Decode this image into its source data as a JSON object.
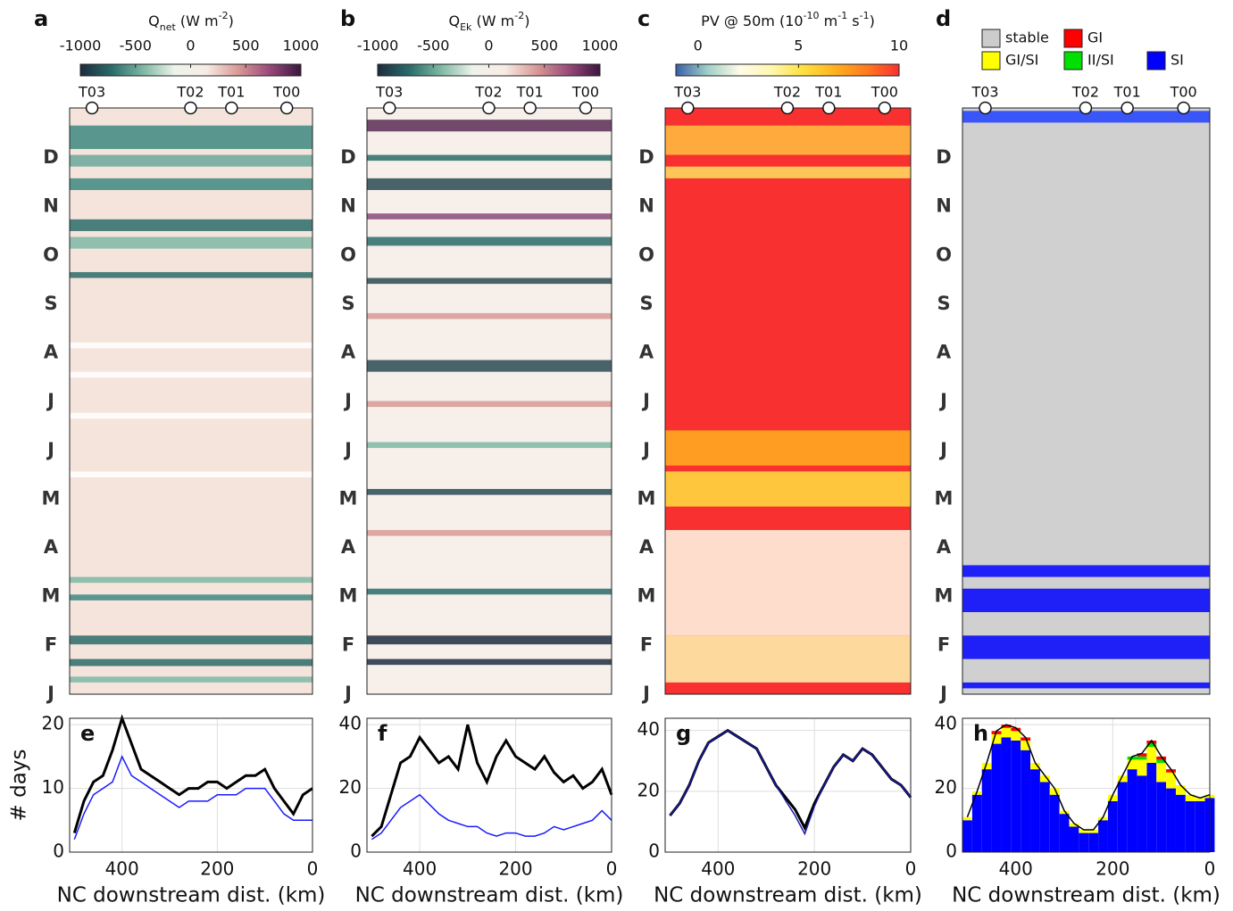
{
  "chart_data": [
    {
      "type": "heatmap",
      "panel_label": "a",
      "colorbar_title": [
        {
          "t": "Q"
        },
        {
          "sub": "net"
        },
        {
          "t": " (W m"
        },
        {
          "sup": "-2"
        },
        {
          "t": ")"
        }
      ],
      "colorbar_lim": [
        -1000,
        1000
      ],
      "colorbar_ticks": [
        -1000,
        -500,
        0,
        500,
        1000
      ],
      "colormap": [
        "#1d2b3f",
        "#2a6c6a",
        "#7fb8a4",
        "#eef3ec",
        "#f7ece4",
        "#d89a96",
        "#9a4a7a",
        "#3a1640"
      ],
      "stations": [
        "T03",
        "T02",
        "T01",
        "T00"
      ],
      "station_x": [
        463,
        256,
        170,
        54
      ],
      "xlim": [
        510,
        0
      ],
      "months": [
        "J",
        "F",
        "M",
        "A",
        "M",
        "J",
        "J",
        "A",
        "S",
        "O",
        "N",
        "D"
      ]
    },
    {
      "type": "heatmap",
      "panel_label": "b",
      "colorbar_title": [
        {
          "t": "Q"
        },
        {
          "sub": "Ek"
        },
        {
          "t": " (W m"
        },
        {
          "sup": "-2"
        },
        {
          "t": ")"
        }
      ],
      "colorbar_lim": [
        -1000,
        1000
      ],
      "colorbar_ticks": [
        -1000,
        -500,
        0,
        500,
        1000
      ],
      "colormap": [
        "#1d2b3f",
        "#2a6c6a",
        "#7fb8a4",
        "#eef3ec",
        "#f7ece4",
        "#d89a96",
        "#9a4a7a",
        "#3a1640"
      ],
      "stations": [
        "T03",
        "T02",
        "T01",
        "T00"
      ],
      "station_x": [
        463,
        256,
        170,
        54
      ],
      "xlim": [
        510,
        0
      ],
      "months": [
        "J",
        "F",
        "M",
        "A",
        "M",
        "J",
        "J",
        "A",
        "S",
        "O",
        "N",
        "D"
      ]
    },
    {
      "type": "heatmap",
      "panel_label": "c",
      "colorbar_title": [
        {
          "t": "PV @ 50m (10"
        },
        {
          "sup": "-10"
        },
        {
          "t": " m"
        },
        {
          "sup": "-1"
        },
        {
          "t": " s"
        },
        {
          "sup": "-1"
        },
        {
          "t": ")"
        }
      ],
      "colorbar_lim": [
        -1.1,
        10
      ],
      "colorbar_ticks": [
        0,
        5,
        10
      ],
      "colormap": [
        "#3a5fa8",
        "#9fd0c8",
        "#fffbe8",
        "#fff7b0",
        "#ffe040",
        "#ffb020",
        "#ff7a20",
        "#f83030"
      ],
      "stations": [
        "T03",
        "T02",
        "T01",
        "T00"
      ],
      "station_x": [
        463,
        256,
        170,
        54
      ],
      "xlim": [
        510,
        0
      ],
      "months": [
        "J",
        "F",
        "M",
        "A",
        "M",
        "J",
        "J",
        "A",
        "S",
        "O",
        "N",
        "D"
      ]
    },
    {
      "type": "heatmap",
      "panel_label": "d",
      "legend": [
        {
          "name": "stable",
          "color": "#cccccc"
        },
        {
          "name": "GI",
          "color": "#ff0000"
        },
        {
          "name": "GI/SI",
          "color": "#ffff00"
        },
        {
          "name": "II/SI",
          "color": "#00e000"
        },
        {
          "name": "SI",
          "color": "#0000ff"
        }
      ],
      "stations": [
        "T03",
        "T02",
        "T01",
        "T00"
      ],
      "station_x": [
        463,
        256,
        170,
        54
      ],
      "xlim": [
        510,
        0
      ],
      "months": [
        "J",
        "F",
        "M",
        "A",
        "M",
        "J",
        "J",
        "A",
        "S",
        "O",
        "N",
        "D"
      ]
    },
    {
      "type": "line",
      "panel_label": "e",
      "ylabel": "# days",
      "xlabel": "NC downstream dist. (km)",
      "xlim": [
        510,
        0
      ],
      "xticks": [
        400,
        200,
        0
      ],
      "ylim": [
        0,
        21
      ],
      "yticks": [
        0,
        10,
        20
      ],
      "grid": true,
      "x": [
        500,
        480,
        460,
        440,
        420,
        400,
        380,
        360,
        340,
        320,
        300,
        280,
        260,
        240,
        220,
        200,
        180,
        160,
        140,
        120,
        100,
        80,
        60,
        40,
        20,
        0
      ],
      "series": [
        {
          "color": "#000000",
          "values": [
            3,
            8,
            11,
            12,
            16,
            21,
            17,
            13,
            12,
            11,
            10,
            9,
            10,
            10,
            11,
            11,
            10,
            11,
            12,
            12,
            13,
            10,
            8,
            6,
            9,
            10
          ]
        },
        {
          "color": "#1a1aff",
          "values": [
            2,
            6,
            9,
            10,
            11,
            15,
            12,
            11,
            10,
            9,
            8,
            7,
            8,
            8,
            8,
            9,
            9,
            9,
            10,
            10,
            10,
            8,
            6,
            5,
            5,
            5
          ]
        }
      ]
    },
    {
      "type": "line",
      "panel_label": "f",
      "xlabel": "NC downstream dist. (km)",
      "xlim": [
        510,
        0
      ],
      "xticks": [
        400,
        200,
        0
      ],
      "ylim": [
        0,
        42
      ],
      "yticks": [
        0,
        20,
        40
      ],
      "grid": true,
      "x": [
        500,
        480,
        460,
        440,
        420,
        400,
        380,
        360,
        340,
        320,
        300,
        280,
        260,
        240,
        220,
        200,
        180,
        160,
        140,
        120,
        100,
        80,
        60,
        40,
        20,
        0
      ],
      "series": [
        {
          "color": "#000000",
          "values": [
            5,
            8,
            18,
            28,
            30,
            36,
            32,
            28,
            30,
            26,
            40,
            28,
            22,
            30,
            35,
            30,
            28,
            26,
            30,
            25,
            22,
            24,
            20,
            22,
            26,
            18
          ]
        },
        {
          "color": "#1a1aff",
          "values": [
            4,
            6,
            10,
            14,
            16,
            18,
            15,
            12,
            10,
            9,
            8,
            8,
            6,
            5,
            6,
            6,
            5,
            5,
            6,
            8,
            7,
            8,
            9,
            10,
            13,
            10
          ]
        }
      ]
    },
    {
      "type": "line",
      "panel_label": "g",
      "xlabel": "NC downstream dist. (km)",
      "xlim": [
        510,
        0
      ],
      "xticks": [
        400,
        200,
        0
      ],
      "ylim": [
        0,
        44
      ],
      "yticks": [
        0,
        20,
        40
      ],
      "grid": true,
      "x": [
        500,
        480,
        460,
        440,
        420,
        400,
        380,
        360,
        340,
        320,
        300,
        280,
        260,
        240,
        220,
        200,
        180,
        160,
        140,
        120,
        100,
        80,
        60,
        40,
        20,
        0
      ],
      "series": [
        {
          "color": "#000000",
          "values": [
            12,
            16,
            22,
            30,
            36,
            38,
            40,
            38,
            36,
            34,
            28,
            22,
            18,
            14,
            8,
            16,
            22,
            28,
            32,
            30,
            34,
            32,
            28,
            24,
            22,
            18
          ]
        },
        {
          "color": "#1a1aaa",
          "values": [
            12,
            16,
            22,
            30,
            36,
            38,
            40,
            38,
            36,
            34,
            28,
            22,
            17,
            12,
            6,
            15,
            22,
            28,
            32,
            30,
            34,
            32,
            28,
            24,
            22,
            18
          ]
        }
      ]
    },
    {
      "type": "stacked-bar",
      "panel_label": "h",
      "xlabel": "NC downstream dist. (km)",
      "xlim": [
        510,
        0
      ],
      "xticks": [
        400,
        200,
        0
      ],
      "ylim": [
        0,
        42
      ],
      "yticks": [
        0,
        20,
        40
      ],
      "grid": true,
      "x": [
        500,
        480,
        460,
        440,
        420,
        400,
        380,
        360,
        340,
        320,
        300,
        280,
        260,
        240,
        220,
        200,
        180,
        160,
        140,
        120,
        100,
        80,
        60,
        40,
        20,
        0
      ],
      "series": [
        {
          "color": "#0000ff",
          "values": [
            10,
            18,
            26,
            34,
            36,
            35,
            32,
            26,
            22,
            18,
            12,
            8,
            6,
            6,
            10,
            16,
            22,
            26,
            24,
            28,
            22,
            20,
            18,
            16,
            16,
            17
          ]
        },
        {
          "color": "#ffff00",
          "values": [
            1,
            1,
            2,
            3,
            3,
            3,
            3,
            2,
            2,
            2,
            1,
            1,
            1,
            1,
            1,
            2,
            2,
            3,
            5,
            5,
            6,
            5,
            3,
            2,
            1,
            1
          ]
        },
        {
          "color": "#00e000",
          "values": [
            0,
            0,
            0,
            0,
            0,
            0,
            0,
            0,
            0,
            0,
            0,
            0,
            0,
            0,
            0,
            0,
            0,
            1,
            1,
            1,
            1,
            0,
            0,
            0,
            0,
            0
          ]
        },
        {
          "color": "#ff0000",
          "values": [
            0,
            0,
            0,
            1,
            1,
            1,
            1,
            0,
            0,
            0,
            0,
            0,
            0,
            0,
            0,
            0,
            0,
            0,
            1,
            1,
            1,
            1,
            0,
            0,
            0,
            0
          ]
        }
      ]
    }
  ]
}
